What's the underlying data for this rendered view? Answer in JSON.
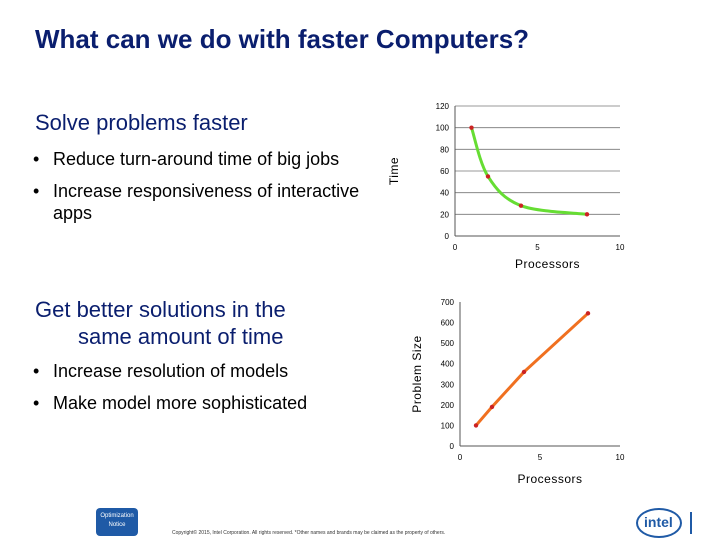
{
  "slide": {
    "title": "What can we do with faster Computers?",
    "section1": {
      "heading": "Solve problems faster",
      "bullets": [
        "Reduce turn-around time of big jobs",
        "Increase responsiveness of interactive apps"
      ]
    },
    "section2": {
      "heading_line1": "Get better solutions in the",
      "heading_line2": "same amount of time",
      "bullets": [
        "Increase resolution of models",
        "Make model more sophisticated"
      ]
    },
    "footer": "Copyright© 2015, Intel Corporation. All rights reserved. *Other names and brands may be claimed as the property of others.",
    "badge": "Optimization Notice",
    "logo": "intel"
  },
  "chart_data": [
    {
      "type": "line",
      "xlabel": "Processors",
      "ylabel": "Time",
      "xlim": [
        0,
        10
      ],
      "ylim": [
        0,
        120
      ],
      "xticks": [
        0,
        5,
        10
      ],
      "yticks": [
        0,
        20,
        40,
        60,
        80,
        100,
        120
      ],
      "grid": true,
      "line_color": "#66dd33",
      "marker_color": "#cc2222",
      "x": [
        1,
        2,
        4,
        8
      ],
      "y": [
        100,
        55,
        28,
        20
      ]
    },
    {
      "type": "line",
      "xlabel": "Processors",
      "ylabel": "Problem Size",
      "xlim": [
        0,
        10
      ],
      "ylim": [
        0,
        700
      ],
      "xticks": [
        0,
        5,
        10
      ],
      "yticks": [
        0,
        100,
        200,
        300,
        400,
        500,
        600,
        700
      ],
      "grid": false,
      "line_color": "#f07020",
      "marker_color": "#cc2222",
      "x": [
        1,
        2,
        4,
        8
      ],
      "y": [
        100,
        190,
        360,
        645
      ]
    }
  ]
}
